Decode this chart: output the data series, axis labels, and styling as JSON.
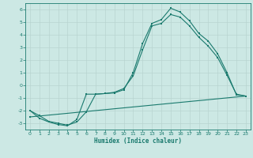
{
  "xlabel": "Humidex (Indice chaleur)",
  "background_color": "#cce8e4",
  "grid_color": "#b8d4d0",
  "line_color": "#1a7a6e",
  "xlim": [
    -0.5,
    23.5
  ],
  "ylim": [
    -3.5,
    6.5
  ],
  "xticks": [
    0,
    1,
    2,
    3,
    4,
    5,
    6,
    7,
    8,
    9,
    10,
    11,
    12,
    13,
    14,
    15,
    16,
    17,
    18,
    19,
    20,
    21,
    22,
    23
  ],
  "yticks": [
    -3,
    -2,
    -1,
    0,
    1,
    2,
    3,
    4,
    5,
    6
  ],
  "line1_x": [
    0,
    1,
    2,
    3,
    4,
    5,
    6,
    7,
    8,
    9,
    10,
    11,
    12,
    13,
    14,
    15,
    16,
    17,
    18,
    19,
    20,
    21,
    22,
    23
  ],
  "line1_y": [
    -2.0,
    -2.6,
    -2.9,
    -3.1,
    -3.2,
    -2.7,
    -0.7,
    -0.7,
    -0.65,
    -0.6,
    -0.35,
    1.0,
    3.3,
    4.9,
    5.2,
    6.1,
    5.8,
    5.1,
    4.1,
    3.5,
    2.5,
    1.0,
    -0.75,
    -0.85
  ],
  "line2_x": [
    0,
    1,
    2,
    3,
    4,
    5,
    6,
    7,
    8,
    9,
    10,
    11,
    12,
    13,
    14,
    15,
    16,
    17,
    18,
    19,
    20,
    21,
    22,
    23
  ],
  "line2_y": [
    -2.0,
    -2.4,
    -2.85,
    -3.0,
    -3.15,
    -2.9,
    -2.1,
    -0.7,
    -0.65,
    -0.55,
    -0.25,
    0.75,
    2.8,
    4.7,
    4.9,
    5.6,
    5.4,
    4.7,
    3.8,
    3.1,
    2.2,
    0.8,
    -0.7,
    -0.85
  ],
  "line3_x": [
    0,
    23
  ],
  "line3_y": [
    -2.5,
    -0.85
  ]
}
